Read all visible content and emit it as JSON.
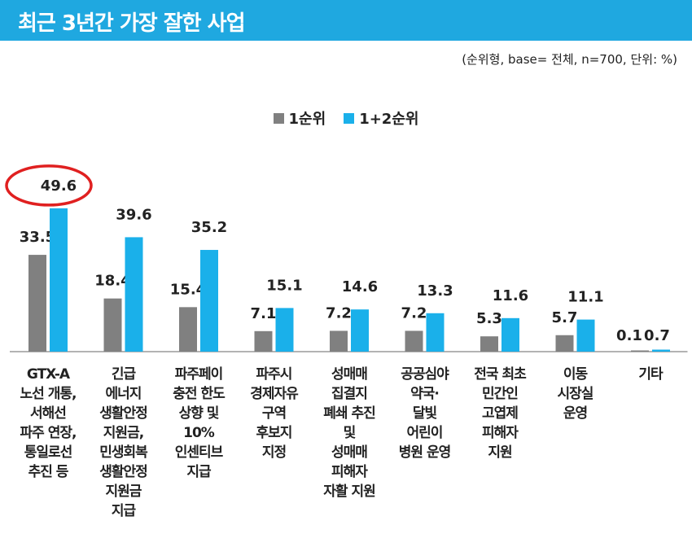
{
  "header": {
    "title": "최근 3년간 가장 잘한 사업",
    "subtitle": "(순위형, base= 전체, n=700, 단위: %)"
  },
  "colors": {
    "title_bar": "#1fa8e0",
    "rank1": "#808080",
    "rank12": "#1ab0ea",
    "highlight_circle": "#e02020"
  },
  "chart_data": {
    "type": "bar",
    "categories": [
      "GTX-A\n노선 개통,\n서해선\n파주 연장,\n통일로선\n추진 등",
      "긴급\n에너지\n생활안정\n지원금,\n민생회복\n생활안정\n지원금\n지급",
      "파주페이\n충전 한도\n상향 및\n10%\n인센티브\n지급",
      "파주시\n경제자유\n구역\n후보지\n지정",
      "성매매\n집결지\n폐쇄 추진\n및\n성매매\n피해자\n자활 지원",
      "공공심야\n약국·\n달빛\n어린이\n병원 운영",
      "전국 최초\n민간인\n고엽제\n피해자\n지원",
      "이동\n시장실\n운영",
      "기타"
    ],
    "series": [
      {
        "name": "1순위",
        "values": [
          33.5,
          18.4,
          15.4,
          7.1,
          7.2,
          7.2,
          5.3,
          5.7,
          0.1
        ]
      },
      {
        "name": "1+2순위",
        "values": [
          49.6,
          39.6,
          35.2,
          15.1,
          14.6,
          13.3,
          11.6,
          11.1,
          0.7
        ]
      }
    ],
    "value_labels": [
      [
        "33.5",
        "18.4",
        "15.4",
        "7.1",
        "7.2",
        "7.2",
        "5.3",
        "5.7",
        "0.1"
      ],
      [
        "49.6",
        "39.6",
        "35.2",
        "15.1",
        "14.6",
        "13.3",
        "11.6",
        "11.1",
        "0.7"
      ]
    ],
    "highlight": {
      "series": 1,
      "index": 0
    },
    "legend_position": "top-center",
    "ylim": [
      0,
      50
    ],
    "grid": false
  }
}
